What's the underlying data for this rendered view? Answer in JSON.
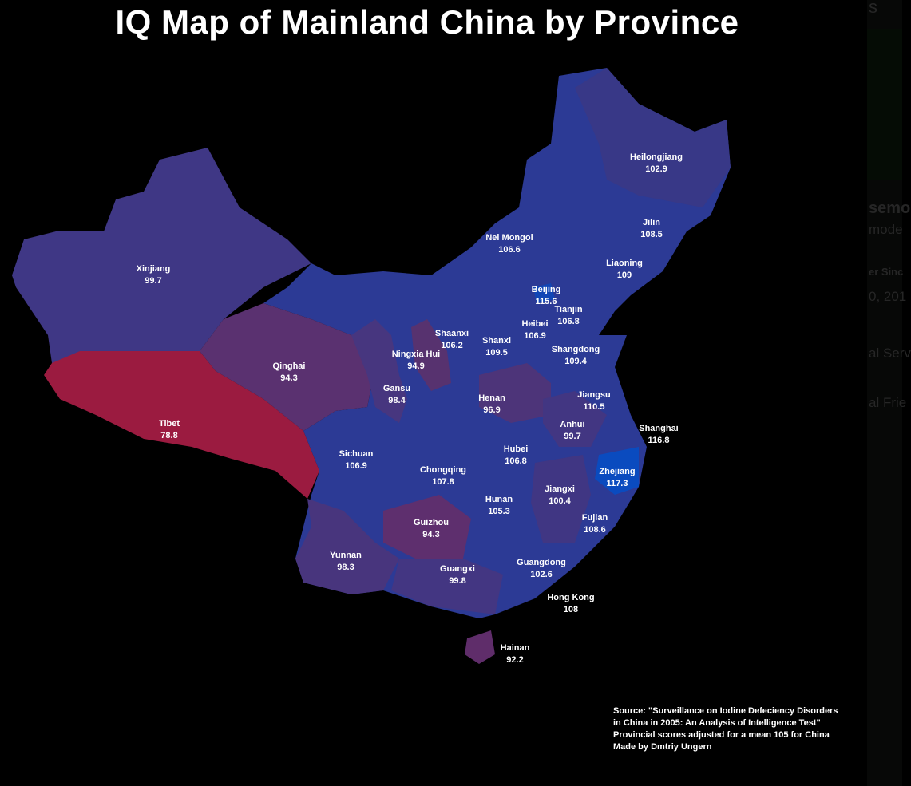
{
  "title": "IQ Map of Mainland China by Province",
  "colors": {
    "background": "#000000",
    "high": "#0a4bbf",
    "mid": "#2c3a95",
    "low": "#9b1b40"
  },
  "provinces": [
    {
      "name": "Xinjiang",
      "value": "99.7",
      "color": "#3f3785"
    },
    {
      "name": "Tibet",
      "value": "78.8",
      "color": "#9b1b40"
    },
    {
      "name": "Qinghai",
      "value": "94.3",
      "color": "#5a3170"
    },
    {
      "name": "Gansu",
      "value": "98.4",
      "color": "#47367f"
    },
    {
      "name": "Ningxia Hui",
      "value": "94.9",
      "color": "#57326f"
    },
    {
      "name": "Nei Mongol",
      "value": "106.6",
      "color": "#2c3a95"
    },
    {
      "name": "Heilongjiang",
      "value": "102.9",
      "color": "#383887"
    },
    {
      "name": "Jilin",
      "value": "108.5",
      "color": "#2640a0"
    },
    {
      "name": "Liaoning",
      "value": "109",
      "color": "#2441a3"
    },
    {
      "name": "Beijing",
      "value": "115.6",
      "color": "#1146b5"
    },
    {
      "name": "Tianjin",
      "value": "106.8",
      "color": "#2c3a95"
    },
    {
      "name": "Heibei",
      "value": "106.9",
      "color": "#2c3a95"
    },
    {
      "name": "Shanxi",
      "value": "109.5",
      "color": "#2441a3"
    },
    {
      "name": "Shaanxi",
      "value": "106.2",
      "color": "#2c3a95"
    },
    {
      "name": "Shangdong",
      "value": "109.4",
      "color": "#2441a3"
    },
    {
      "name": "Henan",
      "value": "96.9",
      "color": "#4d3479"
    },
    {
      "name": "Jiangsu",
      "value": "110.5",
      "color": "#2142a7"
    },
    {
      "name": "Shanghai",
      "value": "116.8",
      "color": "#0c49bc"
    },
    {
      "name": "Anhui",
      "value": "99.7",
      "color": "#423682"
    },
    {
      "name": "Sichuan",
      "value": "106.9",
      "color": "#2c3a95"
    },
    {
      "name": "Chongqing",
      "value": "107.8",
      "color": "#2a3c99"
    },
    {
      "name": "Hubei",
      "value": "106.8",
      "color": "#2c3a95"
    },
    {
      "name": "Hunan",
      "value": "105.3",
      "color": "#2f3a92"
    },
    {
      "name": "Jiangxi",
      "value": "100.4",
      "color": "#403683"
    },
    {
      "name": "Zhejiang",
      "value": "117.3",
      "color": "#0a4bbf"
    },
    {
      "name": "Fujian",
      "value": "108.6",
      "color": "#263fa0"
    },
    {
      "name": "Guizhou",
      "value": "94.3",
      "color": "#5e2f6e"
    },
    {
      "name": "Yunnan",
      "value": "98.3",
      "color": "#48357d"
    },
    {
      "name": "Guangxi",
      "value": "99.8",
      "color": "#433682"
    },
    {
      "name": "Guangdong",
      "value": "102.6",
      "color": "#383a8b"
    },
    {
      "name": "Hong Kong",
      "value": "108",
      "color": "#2640a0"
    },
    {
      "name": "Hainan",
      "value": "92.2",
      "color": "#5f2d6a"
    }
  ],
  "source": [
    "Source: \"Surveillance on Iodine Defeciency Disorders",
    "in China in 2005: An Analysis of Intelligence Test\"",
    "Provincial scores adjusted for a mean 105 for China",
    "Made by Dmtriy Ungern"
  ],
  "background_fragments": [
    "s",
    "semo",
    "mode",
    "er Sinc",
    "0, 201",
    "al Serv",
    "al Frie"
  ]
}
